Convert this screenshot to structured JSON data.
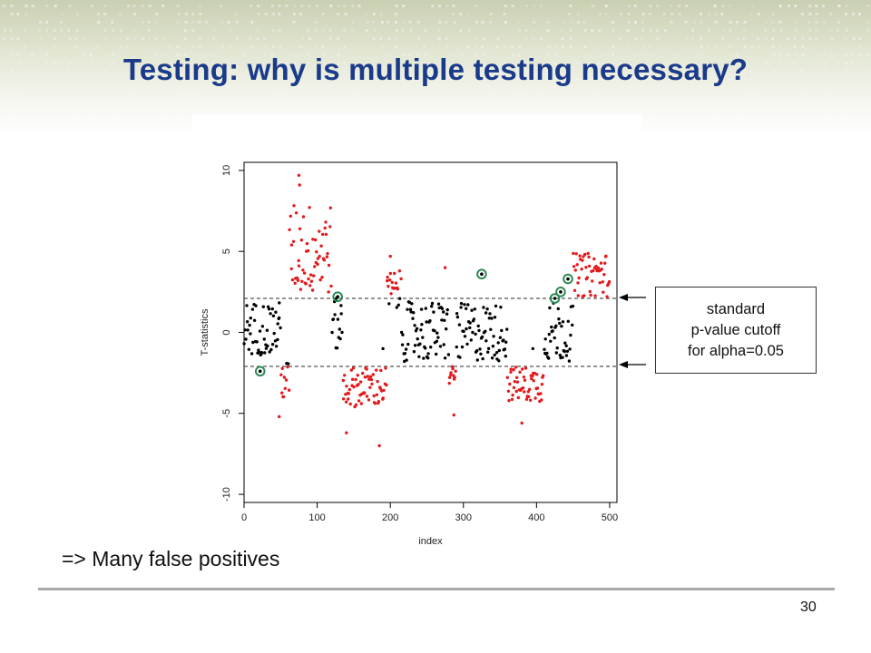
{
  "slide": {
    "title": "Testing: why is multiple testing necessary?",
    "note": "=> Many false positives",
    "page_number": "30",
    "callout": {
      "line1": "standard",
      "line2": "p-value cutoff",
      "line3": "for alpha=0.05"
    },
    "colors": {
      "title": "#1a3a8a",
      "significant": "#e31a1c",
      "non_significant": "#000000",
      "circled": "#2e8b57"
    }
  },
  "chart_data": {
    "type": "scatter",
    "xlabel": "index",
    "ylabel": "T-statistics",
    "xlim": [
      0,
      510
    ],
    "ylim": [
      -10.5,
      10.5
    ],
    "xticks": [
      0,
      100,
      200,
      300,
      400,
      500
    ],
    "yticks": [
      -10,
      -5,
      0,
      5,
      10
    ],
    "cutoffs": [
      2.1,
      -2.1
    ],
    "grid": false,
    "circled_points": [
      {
        "x": 22,
        "y": -2.4
      },
      {
        "x": 128,
        "y": 2.2
      },
      {
        "x": 325,
        "y": 3.6
      },
      {
        "x": 425,
        "y": 2.1
      },
      {
        "x": 433,
        "y": 2.5
      },
      {
        "x": 443,
        "y": 3.3
      }
    ],
    "segments": [
      {
        "x0": 0,
        "x1": 50,
        "y_min": -1.4,
        "y_max": 1.9
      },
      {
        "x0": 50,
        "x1": 62,
        "y_min": -4.2,
        "y_max": -1.7
      },
      {
        "x0": 62,
        "x1": 120,
        "y_min": 2.3,
        "y_max": 8.0
      },
      {
        "x0": 120,
        "x1": 135,
        "y_min": -1.2,
        "y_max": 2.1
      },
      {
        "x0": 135,
        "x1": 195,
        "y_min": -4.6,
        "y_max": -2.1
      },
      {
        "x0": 195,
        "x1": 215,
        "y_min": 1.3,
        "y_max": 3.8
      },
      {
        "x0": 215,
        "x1": 280,
        "y_min": -1.8,
        "y_max": 1.9
      },
      {
        "x0": 280,
        "x1": 290,
        "y_min": -3.3,
        "y_max": -2.0
      },
      {
        "x0": 290,
        "x1": 360,
        "y_min": -1.8,
        "y_max": 1.8
      },
      {
        "x0": 360,
        "x1": 410,
        "y_min": -4.3,
        "y_max": -2.1
      },
      {
        "x0": 410,
        "x1": 450,
        "y_min": -1.8,
        "y_max": 1.9
      },
      {
        "x0": 450,
        "x1": 500,
        "y_min": 2.2,
        "y_max": 4.9
      }
    ],
    "outliers": [
      {
        "x": 75,
        "y": 9.7
      },
      {
        "x": 76,
        "y": 9.1
      },
      {
        "x": 48,
        "y": -5.2
      },
      {
        "x": 140,
        "y": -6.2
      },
      {
        "x": 185,
        "y": -7.0
      },
      {
        "x": 200,
        "y": 4.7
      },
      {
        "x": 190,
        "y": -1.0
      },
      {
        "x": 275,
        "y": 4.0
      },
      {
        "x": 287,
        "y": -5.1
      },
      {
        "x": 380,
        "y": -5.6
      },
      {
        "x": 395,
        "y": -1.0
      },
      {
        "x": 48,
        "y": 0.9
      }
    ]
  }
}
